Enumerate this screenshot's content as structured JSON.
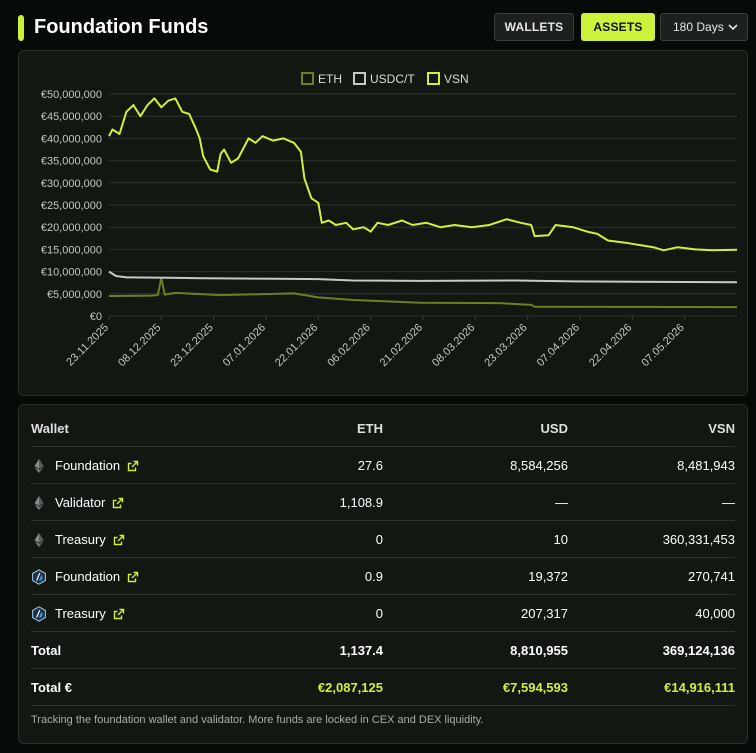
{
  "header": {
    "title": "Foundation Funds",
    "wallets_label": "WALLETS",
    "assets_label": "ASSETS",
    "period_select": {
      "value": "180 Days",
      "icon": "chevron-down-icon"
    },
    "accent_color": "#ccf23c"
  },
  "chart_data": {
    "type": "line",
    "legend_position": "top-center",
    "grid": true,
    "ylim": [
      0,
      50000000
    ],
    "y_tick_labels": [
      "€0",
      "€5,000,000",
      "€10,000,000",
      "€15,000,000",
      "€20,000,000",
      "€25,000,000",
      "€30,000,000",
      "€35,000,000",
      "€40,000,000",
      "€45,000,000",
      "€50,000,000"
    ],
    "x_tick_labels": [
      "23.11.2025",
      "08.12.2025",
      "23.12.2025",
      "07.01.2026",
      "22.01.2026",
      "06.02.2026",
      "21.02.2026",
      "08.03.2026",
      "23.03.2026",
      "07.04.2026",
      "22.04.2026",
      "07.05.2026"
    ],
    "x_range": [
      "23.11.2025",
      "22.05.2026"
    ],
    "series": [
      {
        "name": "VSN",
        "color": "#ccf23c",
        "points": [
          [
            "23.11.2025",
            40500000
          ],
          [
            "24.11.2025",
            42000000
          ],
          [
            "26.11.2025",
            41000000
          ],
          [
            "28.11.2025",
            46000000
          ],
          [
            "30.11.2025",
            47500000
          ],
          [
            "02.12.2025",
            45000000
          ],
          [
            "04.12.2025",
            47500000
          ],
          [
            "06.12.2025",
            49000000
          ],
          [
            "08.12.2025",
            47000000
          ],
          [
            "10.12.2025",
            48500000
          ],
          [
            "12.12.2025",
            49000000
          ],
          [
            "14.12.2025",
            46000000
          ],
          [
            "16.12.2025",
            45500000
          ],
          [
            "18.12.2025",
            42000000
          ],
          [
            "19.12.2025",
            40000000
          ],
          [
            "20.12.2025",
            36000000
          ],
          [
            "22.12.2025",
            33000000
          ],
          [
            "24.12.2025",
            32500000
          ],
          [
            "25.12.2025",
            36500000
          ],
          [
            "26.12.2025",
            37500000
          ],
          [
            "28.12.2025",
            34500000
          ],
          [
            "30.12.2025",
            35500000
          ],
          [
            "02.01.2026",
            40000000
          ],
          [
            "04.01.2026",
            39000000
          ],
          [
            "06.01.2026",
            40500000
          ],
          [
            "09.01.2026",
            39500000
          ],
          [
            "12.01.2026",
            40000000
          ],
          [
            "15.01.2026",
            39000000
          ],
          [
            "17.01.2026",
            37000000
          ],
          [
            "18.01.2026",
            31000000
          ],
          [
            "20.01.2026",
            26500000
          ],
          [
            "22.01.2026",
            25500000
          ],
          [
            "23.01.2026",
            21000000
          ],
          [
            "25.01.2026",
            21500000
          ],
          [
            "27.01.2026",
            20500000
          ],
          [
            "30.01.2026",
            21000000
          ],
          [
            "01.02.2026",
            19500000
          ],
          [
            "04.02.2026",
            20000000
          ],
          [
            "06.02.2026",
            19000000
          ],
          [
            "08.02.2026",
            21000000
          ],
          [
            "11.02.2026",
            20500000
          ],
          [
            "15.02.2026",
            21500000
          ],
          [
            "18.02.2026",
            20500000
          ],
          [
            "22.02.2026",
            21000000
          ],
          [
            "26.02.2026",
            20000000
          ],
          [
            "02.03.2026",
            20500000
          ],
          [
            "07.03.2026",
            20000000
          ],
          [
            "12.03.2026",
            20500000
          ],
          [
            "17.03.2026",
            21800000
          ],
          [
            "21.03.2026",
            21000000
          ],
          [
            "24.03.2026",
            20500000
          ],
          [
            "25.03.2026",
            18000000
          ],
          [
            "29.03.2026",
            18200000
          ],
          [
            "31.03.2026",
            20500000
          ],
          [
            "05.04.2026",
            20000000
          ],
          [
            "09.04.2026",
            19000000
          ],
          [
            "12.04.2026",
            18500000
          ],
          [
            "15.04.2026",
            17000000
          ],
          [
            "20.04.2026",
            16500000
          ],
          [
            "24.04.2026",
            16000000
          ],
          [
            "28.04.2026",
            15500000
          ],
          [
            "01.05.2026",
            14800000
          ],
          [
            "05.05.2026",
            15500000
          ],
          [
            "10.05.2026",
            15000000
          ],
          [
            "15.05.2026",
            14800000
          ],
          [
            "22.05.2026",
            14900000
          ]
        ]
      },
      {
        "name": "USDC/T",
        "color": "#c8c8c8",
        "points": [
          [
            "23.11.2025",
            10000000
          ],
          [
            "25.11.2025",
            9000000
          ],
          [
            "28.11.2025",
            8700000
          ],
          [
            "10.12.2025",
            8600000
          ],
          [
            "20.12.2025",
            8500000
          ],
          [
            "10.01.2026",
            8400000
          ],
          [
            "22.01.2026",
            8300000
          ],
          [
            "01.02.2026",
            8000000
          ],
          [
            "20.02.2026",
            7900000
          ],
          [
            "20.03.2026",
            8000000
          ],
          [
            "05.04.2026",
            7800000
          ],
          [
            "22.05.2026",
            7600000
          ]
        ]
      },
      {
        "name": "ETH",
        "color": "#6e7f1f",
        "points": [
          [
            "23.11.2025",
            4500000
          ],
          [
            "05.12.2025",
            4600000
          ],
          [
            "07.12.2025",
            4700000
          ],
          [
            "08.12.2025",
            8500000
          ],
          [
            "09.12.2025",
            4800000
          ],
          [
            "12.12.2025",
            5200000
          ],
          [
            "25.12.2025",
            4700000
          ],
          [
            "05.01.2026",
            4900000
          ],
          [
            "15.01.2026",
            5100000
          ],
          [
            "22.01.2026",
            4200000
          ],
          [
            "01.02.2026",
            3600000
          ],
          [
            "20.02.2026",
            3000000
          ],
          [
            "15.03.2026",
            2900000
          ],
          [
            "24.03.2026",
            2500000
          ],
          [
            "25.03.2026",
            2100000
          ],
          [
            "22.05.2026",
            2000000
          ]
        ]
      }
    ]
  },
  "table": {
    "columns": [
      "Wallet",
      "ETH",
      "USD",
      "VSN"
    ],
    "rows": [
      {
        "icon": "ethereum-icon",
        "wallet": "Foundation",
        "eth": "27.6",
        "usd": "8,584,256",
        "vsn": "8,481,943"
      },
      {
        "icon": "ethereum-icon",
        "wallet": "Validator",
        "eth": "1,108.9",
        "usd": "—",
        "vsn": "—"
      },
      {
        "icon": "ethereum-icon",
        "wallet": "Treasury",
        "eth": "0",
        "usd": "10",
        "vsn": "360,331,453"
      },
      {
        "icon": "arbitrum-icon",
        "wallet": "Foundation",
        "eth": "0.9",
        "usd": "19,372",
        "vsn": "270,741"
      },
      {
        "icon": "arbitrum-icon",
        "wallet": "Treasury",
        "eth": "0",
        "usd": "207,317",
        "vsn": "40,000"
      }
    ],
    "total": {
      "label": "Total",
      "eth": "1,137.4",
      "usd": "8,810,955",
      "vsn": "369,124,136"
    },
    "total_eur": {
      "label": "Total €",
      "eth": "€2,087,125",
      "usd": "€7,594,593",
      "vsn": "€14,916,111"
    },
    "footnote": "Tracking the foundation wallet and validator. More funds are locked in CEX and DEX liquidity."
  }
}
